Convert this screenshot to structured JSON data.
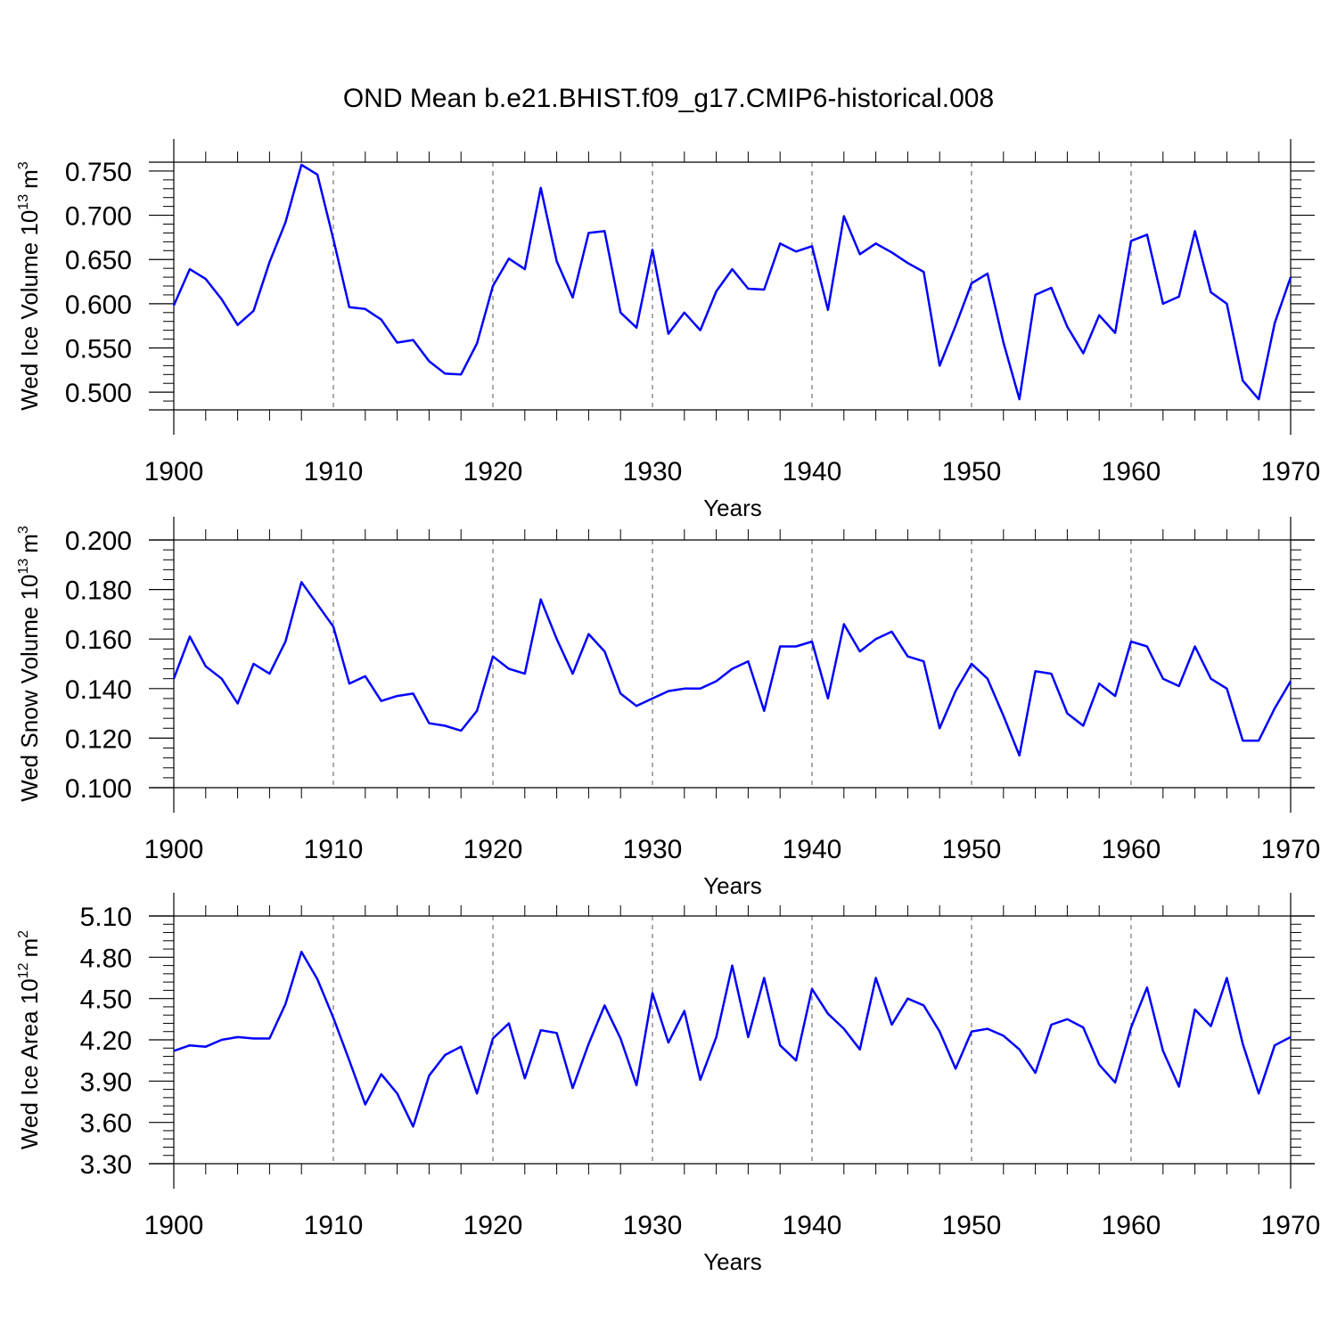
{
  "title": "OND Mean b.e21.BHIST.f09_g17.CMIP6-historical.008",
  "colors": {
    "series": "#0000ff",
    "axis": "#000000",
    "grid": "#555555"
  },
  "chart_data": [
    {
      "type": "line",
      "ylabel": {
        "text": "Wed Ice Volume 10",
        "exp": "13",
        "unit": "m",
        "unit_exp": "3"
      },
      "xlabel": "Years",
      "xlim": [
        1900,
        1970
      ],
      "ylim": [
        0.48,
        0.76
      ],
      "yticks": [
        0.5,
        0.55,
        0.6,
        0.65,
        0.7,
        0.75
      ],
      "ytick_labels": [
        "0.500",
        "0.550",
        "0.600",
        "0.650",
        "0.700",
        "0.750"
      ],
      "xticks": [
        1900,
        1910,
        1920,
        1930,
        1940,
        1950,
        1960,
        1970
      ],
      "xtick_labels": [
        "1900",
        "1910",
        "1920",
        "1930",
        "1940",
        "1950",
        "1960",
        "1970"
      ],
      "grid": "vertical dashed at decades",
      "x": [
        1900,
        1901,
        1902,
        1903,
        1904,
        1905,
        1906,
        1907,
        1908,
        1909,
        1910,
        1911,
        1912,
        1913,
        1914,
        1915,
        1916,
        1917,
        1918,
        1919,
        1920,
        1921,
        1922,
        1923,
        1924,
        1925,
        1926,
        1927,
        1928,
        1929,
        1930,
        1931,
        1932,
        1933,
        1934,
        1935,
        1936,
        1937,
        1938,
        1939,
        1940,
        1941,
        1942,
        1943,
        1944,
        1945,
        1946,
        1947,
        1948,
        1949,
        1950,
        1951,
        1952,
        1953,
        1954,
        1955,
        1956,
        1957,
        1958,
        1959,
        1960,
        1961,
        1962,
        1963,
        1964,
        1965,
        1966,
        1967,
        1968,
        1969,
        1970
      ],
      "values": [
        0.598,
        0.639,
        0.628,
        0.605,
        0.576,
        0.592,
        0.647,
        0.692,
        0.757,
        0.746,
        0.673,
        0.596,
        0.594,
        0.582,
        0.556,
        0.559,
        0.535,
        0.521,
        0.52,
        0.555,
        0.62,
        0.651,
        0.639,
        0.731,
        0.648,
        0.607,
        0.68,
        0.682,
        0.59,
        0.573,
        0.661,
        0.566,
        0.59,
        0.57,
        0.614,
        0.639,
        0.617,
        0.616,
        0.668,
        0.659,
        0.665,
        0.593,
        0.699,
        0.656,
        0.668,
        0.658,
        0.646,
        0.636,
        0.53,
        0.575,
        0.623,
        0.634,
        0.556,
        0.492,
        0.61,
        0.618,
        0.574,
        0.544,
        0.587,
        0.567,
        0.671,
        0.678,
        0.6,
        0.608,
        0.682,
        0.613,
        0.6,
        0.513,
        0.492,
        0.578,
        0.63
      ]
    },
    {
      "type": "line",
      "ylabel": {
        "text": "Wed Snow Volume 10",
        "exp": "13",
        "unit": "m",
        "unit_exp": "3"
      },
      "xlabel": "Years",
      "xlim": [
        1900,
        1970
      ],
      "ylim": [
        0.1,
        0.2
      ],
      "yticks": [
        0.1,
        0.12,
        0.14,
        0.16,
        0.18,
        0.2
      ],
      "ytick_labels": [
        "0.100",
        "0.120",
        "0.140",
        "0.160",
        "0.180",
        "0.200"
      ],
      "xticks": [
        1900,
        1910,
        1920,
        1930,
        1940,
        1950,
        1960,
        1970
      ],
      "xtick_labels": [
        "1900",
        "1910",
        "1920",
        "1930",
        "1940",
        "1950",
        "1960",
        "1970"
      ],
      "grid": "vertical dashed at decades",
      "x": [
        1900,
        1901,
        1902,
        1903,
        1904,
        1905,
        1906,
        1907,
        1908,
        1909,
        1910,
        1911,
        1912,
        1913,
        1914,
        1915,
        1916,
        1917,
        1918,
        1919,
        1920,
        1921,
        1922,
        1923,
        1924,
        1925,
        1926,
        1927,
        1928,
        1929,
        1930,
        1931,
        1932,
        1933,
        1934,
        1935,
        1936,
        1937,
        1938,
        1939,
        1940,
        1941,
        1942,
        1943,
        1944,
        1945,
        1946,
        1947,
        1948,
        1949,
        1950,
        1951,
        1952,
        1953,
        1954,
        1955,
        1956,
        1957,
        1958,
        1959,
        1960,
        1961,
        1962,
        1963,
        1964,
        1965,
        1966,
        1967,
        1968,
        1969,
        1970
      ],
      "values": [
        0.144,
        0.161,
        0.149,
        0.144,
        0.134,
        0.15,
        0.146,
        0.159,
        0.183,
        0.174,
        0.165,
        0.142,
        0.145,
        0.135,
        0.137,
        0.138,
        0.126,
        0.125,
        0.123,
        0.131,
        0.153,
        0.148,
        0.146,
        0.176,
        0.16,
        0.146,
        0.162,
        0.155,
        0.138,
        0.133,
        0.136,
        0.139,
        0.14,
        0.14,
        0.143,
        0.148,
        0.151,
        0.131,
        0.157,
        0.157,
        0.159,
        0.136,
        0.166,
        0.155,
        0.16,
        0.163,
        0.153,
        0.151,
        0.124,
        0.139,
        0.15,
        0.144,
        0.129,
        0.113,
        0.147,
        0.146,
        0.13,
        0.125,
        0.142,
        0.137,
        0.159,
        0.157,
        0.144,
        0.141,
        0.157,
        0.144,
        0.14,
        0.119,
        0.119,
        0.132,
        0.143
      ]
    },
    {
      "type": "line",
      "ylabel": {
        "text": "Wed Ice Area 10",
        "exp": "12",
        "unit": "m",
        "unit_exp": "2"
      },
      "xlabel": "Years",
      "xlim": [
        1900,
        1970
      ],
      "ylim": [
        3.3,
        5.1
      ],
      "yticks": [
        3.3,
        3.6,
        3.9,
        4.2,
        4.5,
        4.8,
        5.1
      ],
      "ytick_labels": [
        "3.30",
        "3.60",
        "3.90",
        "4.20",
        "4.50",
        "4.80",
        "5.10"
      ],
      "xticks": [
        1900,
        1910,
        1920,
        1930,
        1940,
        1950,
        1960,
        1970
      ],
      "xtick_labels": [
        "1900",
        "1910",
        "1920",
        "1930",
        "1940",
        "1950",
        "1960",
        "1970"
      ],
      "grid": "vertical dashed at decades",
      "x": [
        1900,
        1901,
        1902,
        1903,
        1904,
        1905,
        1906,
        1907,
        1908,
        1909,
        1910,
        1911,
        1912,
        1913,
        1914,
        1915,
        1916,
        1917,
        1918,
        1919,
        1920,
        1921,
        1922,
        1923,
        1924,
        1925,
        1926,
        1927,
        1928,
        1929,
        1930,
        1931,
        1932,
        1933,
        1934,
        1935,
        1936,
        1937,
        1938,
        1939,
        1940,
        1941,
        1942,
        1943,
        1944,
        1945,
        1946,
        1947,
        1948,
        1949,
        1950,
        1951,
        1952,
        1953,
        1954,
        1955,
        1956,
        1957,
        1958,
        1959,
        1960,
        1961,
        1962,
        1963,
        1964,
        1965,
        1966,
        1967,
        1968,
        1969,
        1970
      ],
      "values": [
        4.12,
        4.16,
        4.15,
        4.2,
        4.22,
        4.21,
        4.21,
        4.46,
        4.84,
        4.64,
        4.36,
        4.05,
        3.73,
        3.95,
        3.81,
        3.57,
        3.94,
        4.09,
        4.15,
        3.81,
        4.21,
        4.32,
        3.92,
        4.27,
        4.25,
        3.85,
        4.17,
        4.45,
        4.21,
        3.87,
        4.54,
        4.18,
        4.41,
        3.91,
        4.22,
        4.74,
        4.22,
        4.65,
        4.16,
        4.05,
        4.57,
        4.39,
        4.28,
        4.13,
        4.65,
        4.31,
        4.5,
        4.45,
        4.26,
        3.99,
        4.26,
        4.28,
        4.23,
        4.13,
        3.96,
        4.31,
        4.35,
        4.29,
        4.02,
        3.89,
        4.29,
        4.58,
        4.12,
        3.86,
        4.42,
        4.3,
        4.65,
        4.17,
        3.81,
        4.16,
        4.22
      ]
    }
  ]
}
